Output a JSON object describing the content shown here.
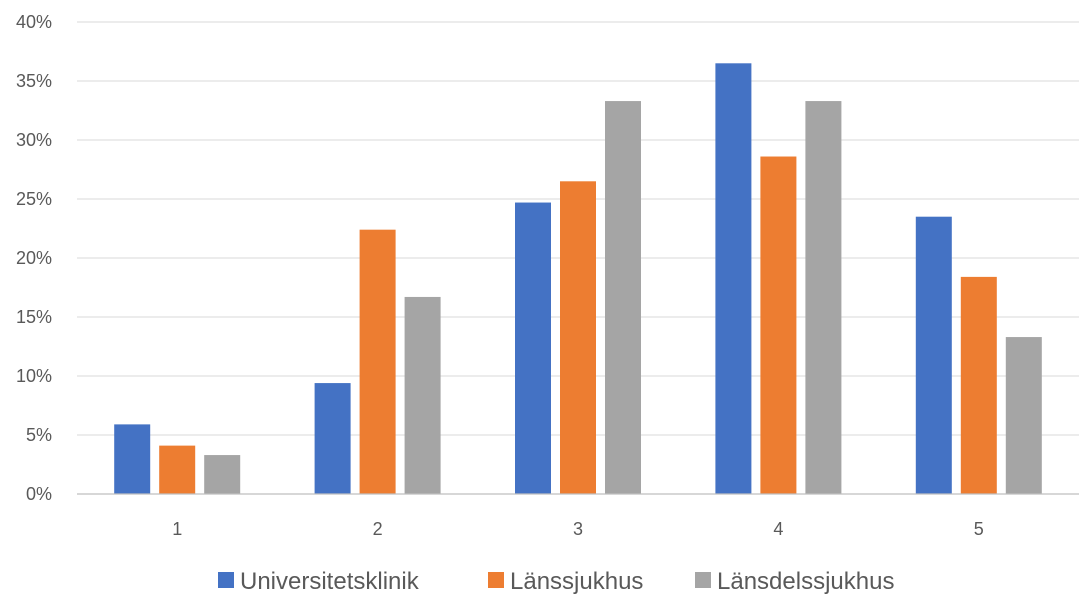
{
  "chart_data": {
    "type": "bar",
    "title": "",
    "xlabel": "",
    "ylabel": "",
    "categories": [
      "1",
      "2",
      "3",
      "4",
      "5"
    ],
    "ylim": [
      0,
      40
    ],
    "y_ticks": [
      "0%",
      "5%",
      "10%",
      "15%",
      "20%",
      "25%",
      "30%",
      "35%",
      "40%"
    ],
    "y_tick_values": [
      0,
      5,
      10,
      15,
      20,
      25,
      30,
      35,
      40
    ],
    "grid": true,
    "legend_position": "bottom",
    "series": [
      {
        "name": "Universitetsklinik",
        "color": "#4472c4",
        "values": [
          5.9,
          9.4,
          24.7,
          36.5,
          23.5
        ]
      },
      {
        "name": "Länssjukhus",
        "color": "#ed7d31",
        "values": [
          4.1,
          22.4,
          26.5,
          28.6,
          18.4
        ]
      },
      {
        "name": "Länsdelssjukhus",
        "color": "#a5a5a5",
        "values": [
          3.3,
          16.7,
          33.3,
          33.3,
          13.3
        ]
      }
    ]
  }
}
